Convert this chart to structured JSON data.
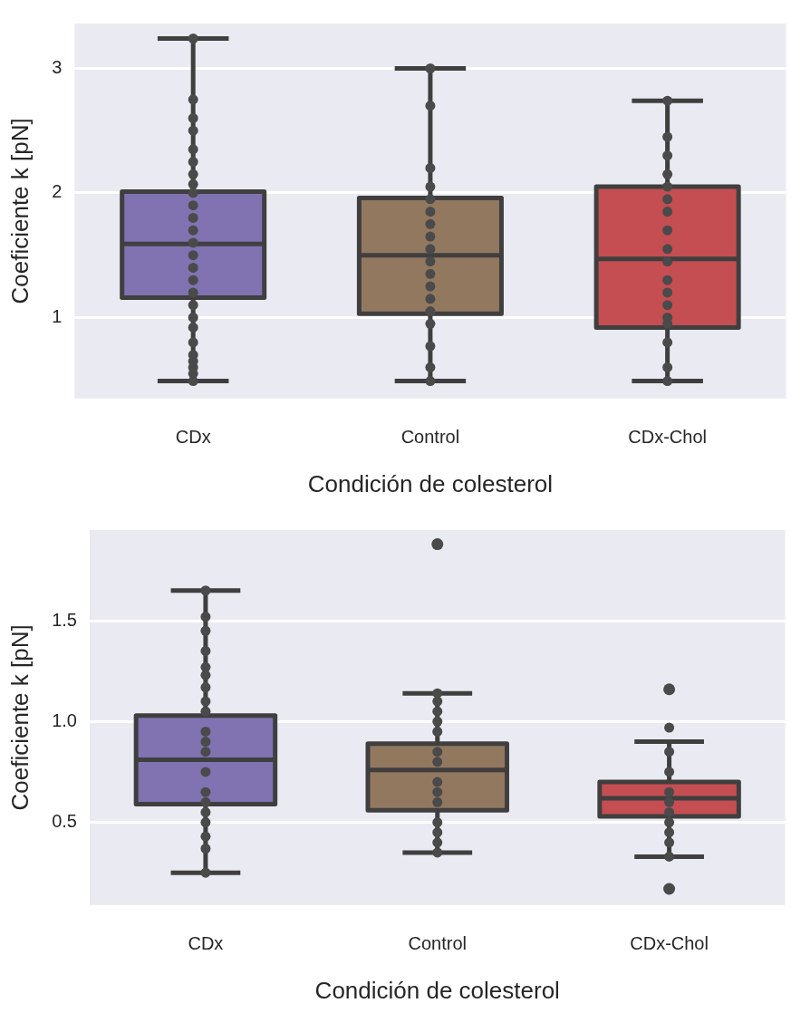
{
  "chart_data": [
    {
      "type": "box",
      "xlabel": "Condición de colesterol",
      "ylabel": "Coeficiente k [pN]",
      "categories": [
        "CDx",
        "Control",
        "CDx-Chol"
      ],
      "colors": [
        "#8172b2",
        "#937860",
        "#c44e52"
      ],
      "ylim": [
        0.35,
        3.36
      ],
      "yticks": [
        1,
        2,
        3
      ],
      "grid": "y",
      "legend": false,
      "boxes": [
        {
          "low": 0.49,
          "q1": 1.16,
          "median": 1.59,
          "q3": 2.01,
          "high": 3.24
        },
        {
          "low": 0.49,
          "q1": 1.03,
          "median": 1.5,
          "q3": 1.96,
          "high": 3.0
        },
        {
          "low": 0.49,
          "q1": 0.92,
          "median": 1.47,
          "q3": 2.05,
          "high": 2.74
        }
      ],
      "series": [
        {
          "type": "scatter",
          "color": "#4a4a4a",
          "x": [
            "CDx",
            "CDx",
            "CDx",
            "CDx",
            "CDx",
            "CDx",
            "CDx",
            "CDx",
            "CDx",
            "CDx",
            "CDx",
            "CDx",
            "CDx",
            "CDx",
            "CDx",
            "CDx",
            "CDx",
            "CDx",
            "CDx",
            "CDx",
            "CDx",
            "CDx",
            "CDx",
            "CDx",
            "CDx",
            "CDx",
            "Control",
            "Control",
            "Control",
            "Control",
            "Control",
            "Control",
            "Control",
            "Control",
            "Control",
            "Control",
            "Control",
            "Control",
            "Control",
            "Control",
            "Control",
            "Control",
            "Control",
            "Control",
            "CDx-Chol",
            "CDx-Chol",
            "CDx-Chol",
            "CDx-Chol",
            "CDx-Chol",
            "CDx-Chol",
            "CDx-Chol",
            "CDx-Chol",
            "CDx-Chol",
            "CDx-Chol",
            "CDx-Chol",
            "CDx-Chol",
            "CDx-Chol",
            "CDx-Chol",
            "CDx-Chol",
            "CDx-Chol",
            "CDx-Chol",
            "CDx-Chol"
          ],
          "values": [
            0.49,
            0.55,
            0.6,
            0.65,
            0.7,
            0.8,
            0.92,
            1.0,
            1.1,
            1.2,
            1.3,
            1.4,
            1.5,
            1.6,
            1.7,
            1.8,
            1.9,
            2.0,
            2.07,
            2.15,
            2.25,
            2.35,
            2.5,
            2.6,
            2.75,
            3.24,
            0.49,
            0.6,
            0.77,
            0.95,
            1.05,
            1.15,
            1.25,
            1.35,
            1.45,
            1.55,
            1.65,
            1.75,
            1.85,
            1.95,
            2.05,
            2.2,
            2.7,
            3.0,
            0.49,
            0.6,
            0.8,
            0.95,
            1.0,
            1.1,
            1.2,
            1.3,
            1.45,
            1.55,
            1.7,
            1.85,
            1.95,
            2.05,
            2.15,
            2.3,
            2.45,
            2.74
          ]
        }
      ]
    },
    {
      "type": "box",
      "xlabel": "Condición de colesterol",
      "ylabel": "Coeficiente k [pN]",
      "categories": [
        "CDx",
        "Control",
        "CDx-Chol"
      ],
      "colors": [
        "#8172b2",
        "#937860",
        "#c44e52"
      ],
      "ylim": [
        0.09,
        1.95
      ],
      "yticks": [
        0.5,
        {
          "value": 1,
          "label": "1.0"
        },
        1.5
      ],
      "grid": "y",
      "legend": false,
      "boxes": [
        {
          "low": 0.25,
          "q1": 0.59,
          "median": 0.81,
          "q3": 1.03,
          "high": 1.65
        },
        {
          "low": 0.35,
          "q1": 0.56,
          "median": 0.76,
          "q3": 0.89,
          "high": 1.14,
          "outliers": [
            1.88
          ]
        },
        {
          "low": 0.33,
          "q1": 0.53,
          "median": 0.62,
          "q3": 0.7,
          "high": 0.9,
          "outliers": [
            1.16,
            0.17
          ]
        }
      ],
      "series": [
        {
          "type": "scatter",
          "color": "#4a4a4a",
          "x": [
            "CDx",
            "CDx",
            "CDx",
            "CDx",
            "CDx",
            "CDx",
            "CDx",
            "CDx",
            "CDx",
            "CDx",
            "CDx",
            "CDx",
            "CDx",
            "CDx",
            "CDx",
            "CDx",
            "CDx",
            "CDx",
            "CDx",
            "CDx",
            "Control",
            "Control",
            "Control",
            "Control",
            "Control",
            "Control",
            "Control",
            "Control",
            "Control",
            "Control",
            "Control",
            "Control",
            "Control",
            "Control",
            "CDx-Chol",
            "CDx-Chol",
            "CDx-Chol",
            "CDx-Chol",
            "CDx-Chol",
            "CDx-Chol",
            "CDx-Chol",
            "CDx-Chol",
            "CDx-Chol",
            "CDx-Chol"
          ],
          "values": [
            0.25,
            0.37,
            0.43,
            0.5,
            0.55,
            0.6,
            0.65,
            0.75,
            0.85,
            0.9,
            0.95,
            1.05,
            1.1,
            1.17,
            1.23,
            1.27,
            1.35,
            1.45,
            1.52,
            1.65,
            0.35,
            0.4,
            0.45,
            0.5,
            0.6,
            0.65,
            0.7,
            0.8,
            0.85,
            0.95,
            1.0,
            1.05,
            1.1,
            1.14,
            0.33,
            0.4,
            0.45,
            0.5,
            0.55,
            0.6,
            0.65,
            0.75,
            0.85,
            0.97
          ]
        }
      ]
    }
  ]
}
